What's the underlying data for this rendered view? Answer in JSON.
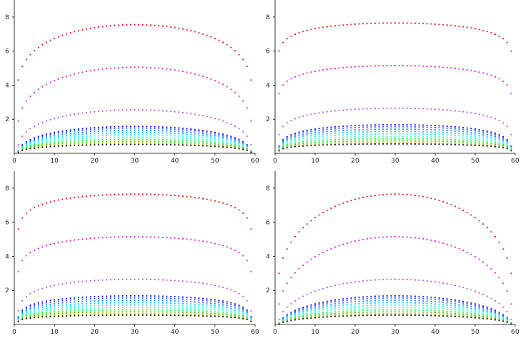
{
  "chart_data": [
    {
      "type": "scatter",
      "panel": "top-left",
      "xlim": [
        0,
        60
      ],
      "ylim": [
        0,
        9
      ],
      "x_ticks": [
        "0",
        "10",
        "20",
        "30",
        "40",
        "50",
        "60"
      ],
      "y_ticks": [
        "2",
        "4",
        "6",
        "8"
      ],
      "x_range": [
        1,
        59
      ],
      "shape_exponent": 0.3,
      "series": [
        {
          "peak": 7.55,
          "end": 4.3,
          "color": "#ff0000"
        },
        {
          "peak": 5.05,
          "end": 1.9,
          "color": "#ff00ff"
        },
        {
          "peak": 2.55,
          "end": 0.5,
          "color": "#c040ff"
        },
        {
          "peak": 1.58,
          "end": 0.15,
          "color": "#0000ff"
        },
        {
          "peak": 1.48,
          "end": 0.14,
          "color": "#4040ff"
        },
        {
          "peak": 1.35,
          "end": 0.13,
          "color": "#0080ff"
        },
        {
          "peak": 1.22,
          "end": 0.12,
          "color": "#00c0ff"
        },
        {
          "peak": 1.08,
          "end": 0.11,
          "color": "#00ffff"
        },
        {
          "peak": 0.95,
          "end": 0.1,
          "color": "#40ffc0"
        },
        {
          "peak": 0.82,
          "end": 0.09,
          "color": "#00ff40"
        },
        {
          "peak": 0.7,
          "end": 0.08,
          "color": "#40c000"
        },
        {
          "peak": 0.6,
          "end": 0.07,
          "color": "#c0c000"
        },
        {
          "peak": 0.52,
          "end": 0.06,
          "color": "#000000"
        }
      ]
    },
    {
      "type": "scatter",
      "panel": "top-right",
      "xlim": [
        0,
        60
      ],
      "ylim": [
        0,
        9
      ],
      "x_ticks": [
        "0",
        "10",
        "20",
        "30",
        "40",
        "50",
        "60"
      ],
      "y_ticks": [
        "2",
        "4",
        "6",
        "8"
      ],
      "x_range": [
        1,
        59
      ],
      "shape_exponent": 0.15,
      "series": [
        {
          "peak": 7.65,
          "end": 6.0,
          "color": "#ff0000"
        },
        {
          "peak": 5.15,
          "end": 3.5,
          "color": "#ff00ff"
        },
        {
          "peak": 2.65,
          "end": 1.1,
          "color": "#c040ff"
        },
        {
          "peak": 1.68,
          "end": 0.42,
          "color": "#0000ff"
        },
        {
          "peak": 1.56,
          "end": 0.38,
          "color": "#4040ff"
        },
        {
          "peak": 1.42,
          "end": 0.35,
          "color": "#0080ff"
        },
        {
          "peak": 1.28,
          "end": 0.32,
          "color": "#00c0ff"
        },
        {
          "peak": 1.14,
          "end": 0.29,
          "color": "#00ffff"
        },
        {
          "peak": 1.0,
          "end": 0.26,
          "color": "#40ffc0"
        },
        {
          "peak": 0.86,
          "end": 0.23,
          "color": "#00ff40"
        },
        {
          "peak": 0.74,
          "end": 0.2,
          "color": "#40c000"
        },
        {
          "peak": 0.63,
          "end": 0.17,
          "color": "#c0c000"
        },
        {
          "peak": 0.55,
          "end": 0.15,
          "color": "#000000"
        }
      ]
    },
    {
      "type": "scatter",
      "panel": "bottom-left",
      "xlim": [
        0,
        60
      ],
      "ylim": [
        0,
        9
      ],
      "x_ticks": [
        "0",
        "10",
        "20",
        "30",
        "40",
        "50",
        "60"
      ],
      "y_ticks": [
        "2",
        "4",
        "6",
        "8"
      ],
      "x_range": [
        1,
        59
      ],
      "shape_exponent": 0.12,
      "series": [
        {
          "peak": 7.65,
          "end": 5.6,
          "color": "#ff0000"
        },
        {
          "peak": 5.15,
          "end": 3.1,
          "color": "#ff00ff"
        },
        {
          "peak": 2.65,
          "end": 0.8,
          "color": "#c040ff"
        },
        {
          "peak": 1.68,
          "end": 0.45,
          "color": "#0000ff"
        },
        {
          "peak": 1.56,
          "end": 0.41,
          "color": "#4040ff"
        },
        {
          "peak": 1.42,
          "end": 0.37,
          "color": "#0080ff"
        },
        {
          "peak": 1.28,
          "end": 0.33,
          "color": "#00c0ff"
        },
        {
          "peak": 1.14,
          "end": 0.3,
          "color": "#00ffff"
        },
        {
          "peak": 1.0,
          "end": 0.27,
          "color": "#40ffc0"
        },
        {
          "peak": 0.86,
          "end": 0.24,
          "color": "#00ff40"
        },
        {
          "peak": 0.74,
          "end": 0.21,
          "color": "#40c000"
        },
        {
          "peak": 0.63,
          "end": 0.19,
          "color": "#c0c000"
        },
        {
          "peak": 0.55,
          "end": 0.17,
          "color": "#000000"
        }
      ]
    },
    {
      "type": "scatter",
      "panel": "bottom-right",
      "xlim": [
        0,
        60
      ],
      "ylim": [
        0,
        9
      ],
      "x_ticks": [
        "0",
        "10",
        "20",
        "30",
        "40",
        "50",
        "60"
      ],
      "y_ticks": [
        "2",
        "4",
        "6",
        "8"
      ],
      "x_range": [
        1,
        59
      ],
      "shape_exponent": 0.45,
      "series": [
        {
          "peak": 7.65,
          "end": 3.0,
          "color": "#ff0000"
        },
        {
          "peak": 5.15,
          "end": 1.2,
          "color": "#ff00ff"
        },
        {
          "peak": 2.65,
          "end": 0.3,
          "color": "#c040ff"
        },
        {
          "peak": 1.68,
          "end": 0.08,
          "color": "#0000ff"
        },
        {
          "peak": 1.56,
          "end": 0.07,
          "color": "#4040ff"
        },
        {
          "peak": 1.42,
          "end": 0.07,
          "color": "#0080ff"
        },
        {
          "peak": 1.28,
          "end": 0.06,
          "color": "#00c0ff"
        },
        {
          "peak": 1.14,
          "end": 0.06,
          "color": "#00ffff"
        },
        {
          "peak": 1.0,
          "end": 0.05,
          "color": "#40ffc0"
        },
        {
          "peak": 0.86,
          "end": 0.05,
          "color": "#00ff40"
        },
        {
          "peak": 0.74,
          "end": 0.04,
          "color": "#40c000"
        },
        {
          "peak": 0.63,
          "end": 0.04,
          "color": "#c0c000"
        },
        {
          "peak": 0.55,
          "end": 0.03,
          "color": "#000000"
        }
      ]
    }
  ]
}
